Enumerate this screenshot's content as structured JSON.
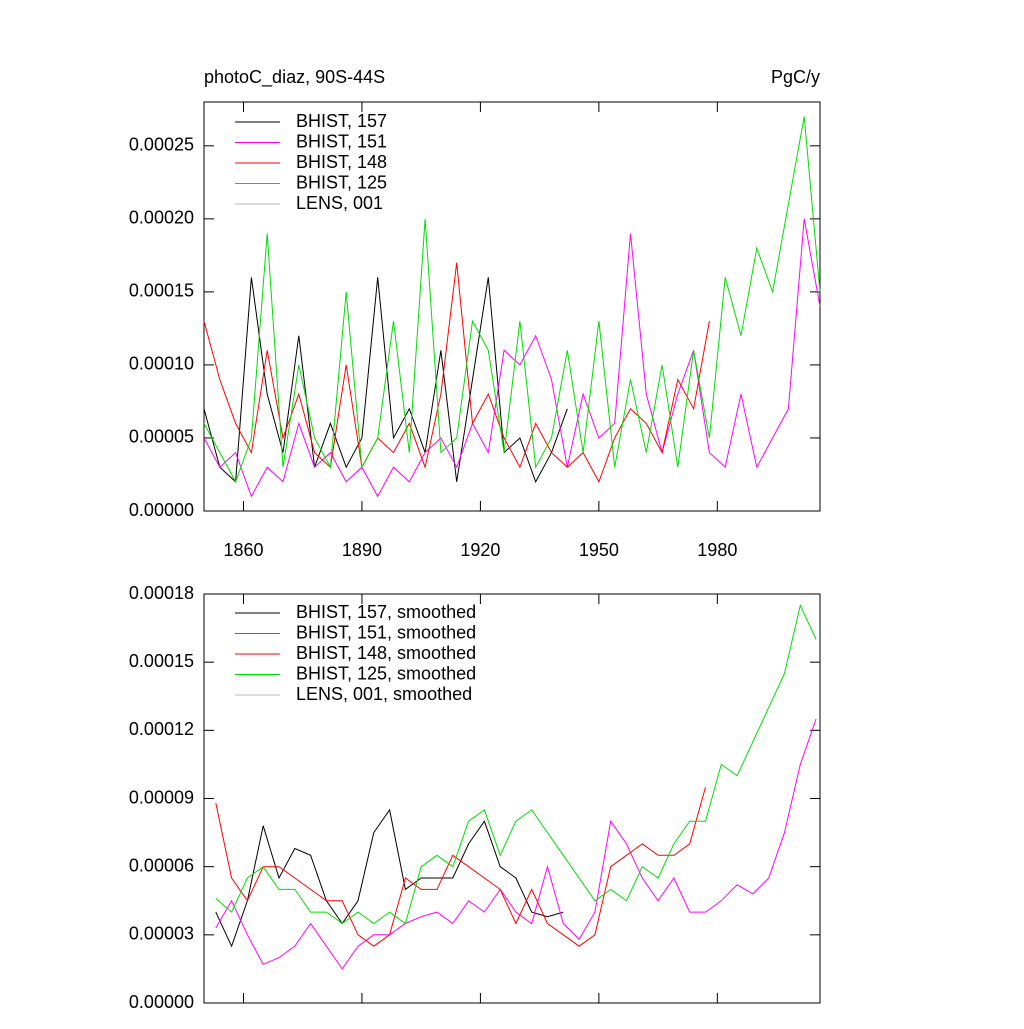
{
  "chart_data": [
    {
      "type": "line",
      "title": "photoC_diaz, 90S-44S",
      "units": "PgC/y",
      "x": [
        1850,
        1854,
        1858,
        1862,
        1866,
        1870,
        1874,
        1878,
        1882,
        1886,
        1890,
        1894,
        1898,
        1902,
        1906,
        1910,
        1914,
        1918,
        1922,
        1926,
        1930,
        1934,
        1938,
        1942,
        1946,
        1950,
        1954,
        1958,
        1962,
        1966,
        1970,
        1974,
        1978,
        1982,
        1986,
        1990,
        1994,
        1998,
        2002,
        2006
      ],
      "xlim": [
        1850,
        2006
      ],
      "xticks": [
        1860,
        1890,
        1920,
        1950,
        1980
      ],
      "ylim": [
        0,
        0.00028
      ],
      "yticks": [
        {
          "value": 0,
          "label": "0.00000"
        },
        {
          "value": 5e-05,
          "label": "0.00005"
        },
        {
          "value": 0.0001,
          "label": "0.00010"
        },
        {
          "value": 0.00015,
          "label": "0.00015"
        },
        {
          "value": 0.0002,
          "label": "0.00020"
        },
        {
          "value": 0.00025,
          "label": "0.00025"
        }
      ],
      "series": [
        {
          "name": "BHIST, 157",
          "color": "#000000",
          "values": [
            7e-05,
            3e-05,
            2e-05,
            0.00016,
            8e-05,
            4e-05,
            0.00012,
            3e-05,
            6e-05,
            3e-05,
            5e-05,
            0.00016,
            5e-05,
            7e-05,
            4e-05,
            0.00011,
            2e-05,
            9e-05,
            0.00016,
            4e-05,
            5e-05,
            2e-05,
            4e-05,
            7e-05,
            null,
            null,
            null,
            null,
            null,
            null,
            null,
            null,
            null,
            null,
            null,
            null,
            null,
            null,
            null,
            null
          ]
        },
        {
          "name": "BHIST, 151",
          "color": "#ff00ff",
          "values": [
            5e-05,
            3e-05,
            4e-05,
            1e-05,
            3e-05,
            2e-05,
            6e-05,
            3e-05,
            4e-05,
            2e-05,
            3e-05,
            1e-05,
            3e-05,
            2e-05,
            4e-05,
            5e-05,
            3e-05,
            6e-05,
            4e-05,
            0.00011,
            0.0001,
            0.00012,
            9e-05,
            3e-05,
            8e-05,
            5e-05,
            6e-05,
            0.00019,
            8e-05,
            4e-05,
            8e-05,
            0.00011,
            4e-05,
            3e-05,
            8e-05,
            3e-05,
            5e-05,
            7e-05,
            0.0002,
            0.00014
          ]
        },
        {
          "name": "BHIST, 148",
          "color": "#ff0000",
          "values": [
            0.00013,
            9e-05,
            6e-05,
            4e-05,
            0.00011,
            5e-05,
            8e-05,
            4e-05,
            3e-05,
            0.0001,
            3e-05,
            5e-05,
            4e-05,
            6e-05,
            3e-05,
            8e-05,
            0.00017,
            6e-05,
            8e-05,
            5e-05,
            3e-05,
            6e-05,
            4e-05,
            3e-05,
            4e-05,
            2e-05,
            5e-05,
            7e-05,
            6e-05,
            4e-05,
            9e-05,
            7e-05,
            0.00013,
            null,
            null,
            null,
            null,
            null,
            null,
            null
          ]
        },
        {
          "name": "BHIST, 125",
          "color": "#00dd00",
          "values": [
            6e-05,
            4e-05,
            2e-05,
            5e-05,
            0.00019,
            3e-05,
            0.0001,
            5e-05,
            3e-05,
            0.00015,
            3e-05,
            5e-05,
            0.00013,
            4e-05,
            0.0002,
            4e-05,
            5e-05,
            0.00013,
            0.00011,
            4e-05,
            0.00013,
            3e-05,
            5e-05,
            0.00011,
            4e-05,
            0.00013,
            3e-05,
            9e-05,
            4e-05,
            0.0001,
            3e-05,
            0.00011,
            5e-05,
            0.00016,
            0.00012,
            0.00018,
            0.00015,
            0.00021,
            0.00027,
            0.00015
          ]
        },
        {
          "name": "LENS, 001",
          "color": "#bbbbbb",
          "values": [
            null,
            null,
            null,
            null,
            null,
            null,
            null,
            null,
            null,
            null,
            null,
            null,
            null,
            null,
            null,
            null,
            null,
            null,
            null,
            null,
            null,
            null,
            null,
            null,
            null,
            null,
            null,
            null,
            null,
            null,
            null,
            null,
            null,
            null,
            null,
            null,
            null,
            null,
            null,
            null
          ]
        }
      ]
    },
    {
      "type": "line",
      "x": [
        1853,
        1857,
        1861,
        1865,
        1869,
        1873,
        1877,
        1881,
        1885,
        1889,
        1893,
        1897,
        1901,
        1905,
        1909,
        1913,
        1917,
        1921,
        1925,
        1929,
        1933,
        1937,
        1941,
        1945,
        1949,
        1953,
        1957,
        1961,
        1965,
        1969,
        1973,
        1977,
        1981,
        1985,
        1989,
        1993,
        1997,
        2001,
        2005
      ],
      "xlim": [
        1850,
        2006
      ],
      "ylim": [
        0,
        0.00018
      ],
      "yticks": [
        {
          "value": 0,
          "label": "0.00000"
        },
        {
          "value": 3e-05,
          "label": "0.00003"
        },
        {
          "value": 6e-05,
          "label": "0.00006"
        },
        {
          "value": 9e-05,
          "label": "0.00009"
        },
        {
          "value": 0.00012,
          "label": "0.00012"
        },
        {
          "value": 0.00015,
          "label": "0.00015"
        },
        {
          "value": 0.00018,
          "label": "0.00018"
        }
      ],
      "series": [
        {
          "name": "BHIST, 157, smoothed",
          "color": "#000000",
          "values": [
            4e-05,
            2.5e-05,
            4.5e-05,
            7.8e-05,
            5.5e-05,
            6.8e-05,
            6.5e-05,
            4.5e-05,
            3.5e-05,
            4.5e-05,
            7.5e-05,
            8.5e-05,
            5e-05,
            5.5e-05,
            5.5e-05,
            5.5e-05,
            7e-05,
            8e-05,
            6e-05,
            5.5e-05,
            4e-05,
            3.8e-05,
            4e-05,
            null,
            null,
            null,
            null,
            null,
            null,
            null,
            null,
            null,
            null,
            null,
            null,
            null,
            null,
            null,
            null
          ]
        },
        {
          "name": "BHIST, 151, smoothed",
          "color": "#ff00ff",
          "values": [
            3.3e-05,
            4.5e-05,
            3e-05,
            1.7e-05,
            2e-05,
            2.5e-05,
            3.5e-05,
            2.5e-05,
            1.5e-05,
            2.5e-05,
            3e-05,
            3e-05,
            3.5e-05,
            3.8e-05,
            4e-05,
            3.5e-05,
            4.5e-05,
            4e-05,
            5e-05,
            4e-05,
            3.5e-05,
            6e-05,
            3.5e-05,
            2.8e-05,
            4e-05,
            8e-05,
            7e-05,
            5.5e-05,
            4.5e-05,
            5.5e-05,
            4e-05,
            4e-05,
            4.5e-05,
            5.2e-05,
            4.8e-05,
            5.5e-05,
            7.5e-05,
            0.000105,
            0.000125
          ]
        },
        {
          "name": "BHIST, 148, smoothed",
          "color": "#ff0000",
          "values": [
            8.8e-05,
            5.5e-05,
            4.5e-05,
            6e-05,
            6e-05,
            5.5e-05,
            5e-05,
            4.5e-05,
            4.5e-05,
            3e-05,
            2.5e-05,
            3e-05,
            5.5e-05,
            5e-05,
            5e-05,
            6.5e-05,
            6e-05,
            5.5e-05,
            5e-05,
            3.5e-05,
            5e-05,
            3.5e-05,
            3e-05,
            2.5e-05,
            3e-05,
            6e-05,
            6.5e-05,
            7e-05,
            6.5e-05,
            6.5e-05,
            7e-05,
            9.5e-05,
            null,
            null,
            null,
            null,
            null,
            null,
            null
          ]
        },
        {
          "name": "BHIST, 125, smoothed",
          "color": "#00dd00",
          "values": [
            4.6e-05,
            4e-05,
            5.5e-05,
            6e-05,
            5e-05,
            5e-05,
            4e-05,
            4e-05,
            3.5e-05,
            4e-05,
            3.5e-05,
            4e-05,
            3.5e-05,
            6e-05,
            6.5e-05,
            6e-05,
            8e-05,
            8.5e-05,
            6.5e-05,
            8e-05,
            8.5e-05,
            7.5e-05,
            6.5e-05,
            5.5e-05,
            4.5e-05,
            5e-05,
            4.5e-05,
            6e-05,
            5.5e-05,
            7e-05,
            8e-05,
            8e-05,
            0.000105,
            0.0001,
            0.000115,
            0.00013,
            0.000145,
            0.000175,
            0.00016
          ]
        },
        {
          "name": "LENS, 001, smoothed",
          "color": "#bbbbbb",
          "values": [
            null,
            null,
            null,
            null,
            null,
            null,
            null,
            null,
            null,
            null,
            null,
            null,
            null,
            null,
            null,
            null,
            null,
            null,
            null,
            null,
            null,
            null,
            null,
            null,
            null,
            null,
            null,
            null,
            null,
            null,
            null,
            null,
            null,
            null,
            null,
            null,
            null,
            null,
            null
          ]
        }
      ]
    }
  ]
}
